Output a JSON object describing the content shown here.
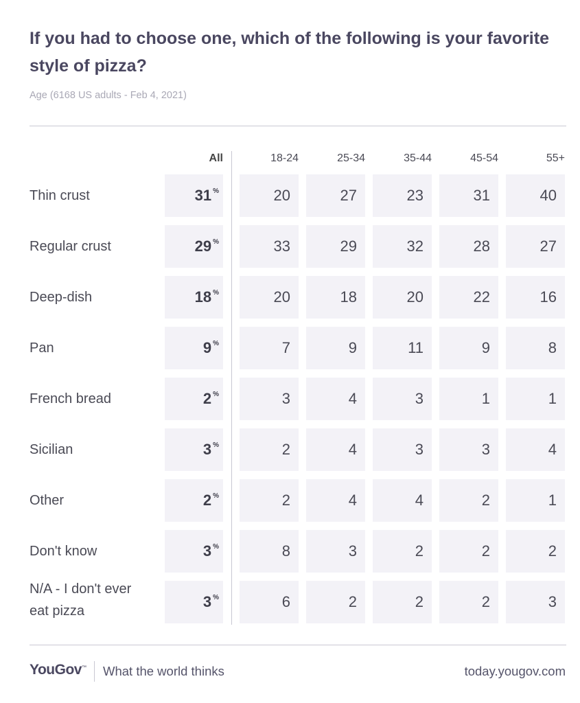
{
  "title": "If you had to choose one, which of the following is your favorite style of pizza?",
  "subtitle": "Age (6168 US adults - Feb 4, 2021)",
  "footer": {
    "logo": "YouGov",
    "tagline": "What the world thinks",
    "url": "today.yougov.com"
  },
  "chart_data": {
    "type": "table",
    "title": "If you had to choose one, which of the following is your favorite style of pizza?",
    "columns": [
      "All",
      "18-24",
      "25-34",
      "35-44",
      "45-54",
      "55+"
    ],
    "percent_symbol": "%",
    "rows": [
      {
        "label": "Thin crust",
        "values": [
          31,
          20,
          27,
          23,
          31,
          40
        ]
      },
      {
        "label": "Regular crust",
        "values": [
          29,
          33,
          29,
          32,
          28,
          27
        ]
      },
      {
        "label": "Deep-dish",
        "values": [
          18,
          20,
          18,
          20,
          22,
          16
        ]
      },
      {
        "label": "Pan",
        "values": [
          9,
          7,
          9,
          11,
          9,
          8
        ]
      },
      {
        "label": "French bread",
        "values": [
          2,
          3,
          4,
          3,
          1,
          1
        ]
      },
      {
        "label": "Sicilian",
        "values": [
          3,
          2,
          4,
          3,
          3,
          4
        ]
      },
      {
        "label": "Other",
        "values": [
          2,
          2,
          4,
          4,
          2,
          1
        ]
      },
      {
        "label": "Don't know",
        "values": [
          3,
          8,
          3,
          2,
          2,
          2
        ]
      },
      {
        "label": "N/A - I don't ever eat pizza",
        "values": [
          3,
          6,
          2,
          2,
          2,
          3
        ]
      }
    ]
  }
}
